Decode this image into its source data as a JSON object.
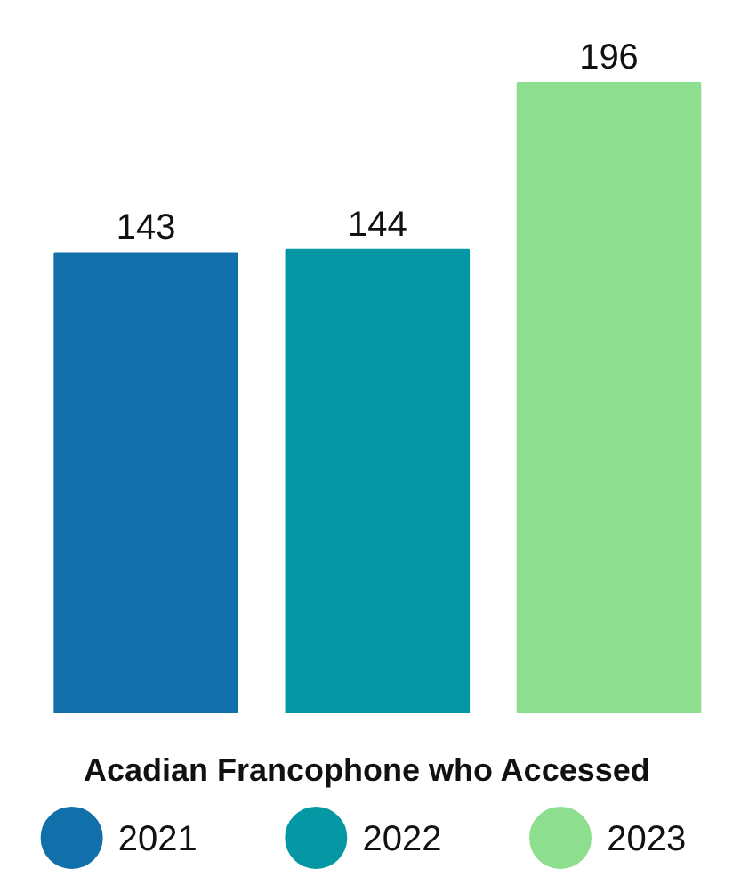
{
  "chart_data": {
    "type": "bar",
    "xlabel": "Acadian Francophone who Accessed",
    "categories": [
      null
    ],
    "series": [
      {
        "name": "2021",
        "color": "#1170aa",
        "values": [
          143
        ]
      },
      {
        "name": "2022",
        "color": "#0697a4",
        "values": [
          144
        ]
      },
      {
        "name": "2023",
        "color": "#8ede8f",
        "values": [
          196
        ]
      }
    ],
    "data_labels": true,
    "legend": "bottom",
    "grid": false
  }
}
